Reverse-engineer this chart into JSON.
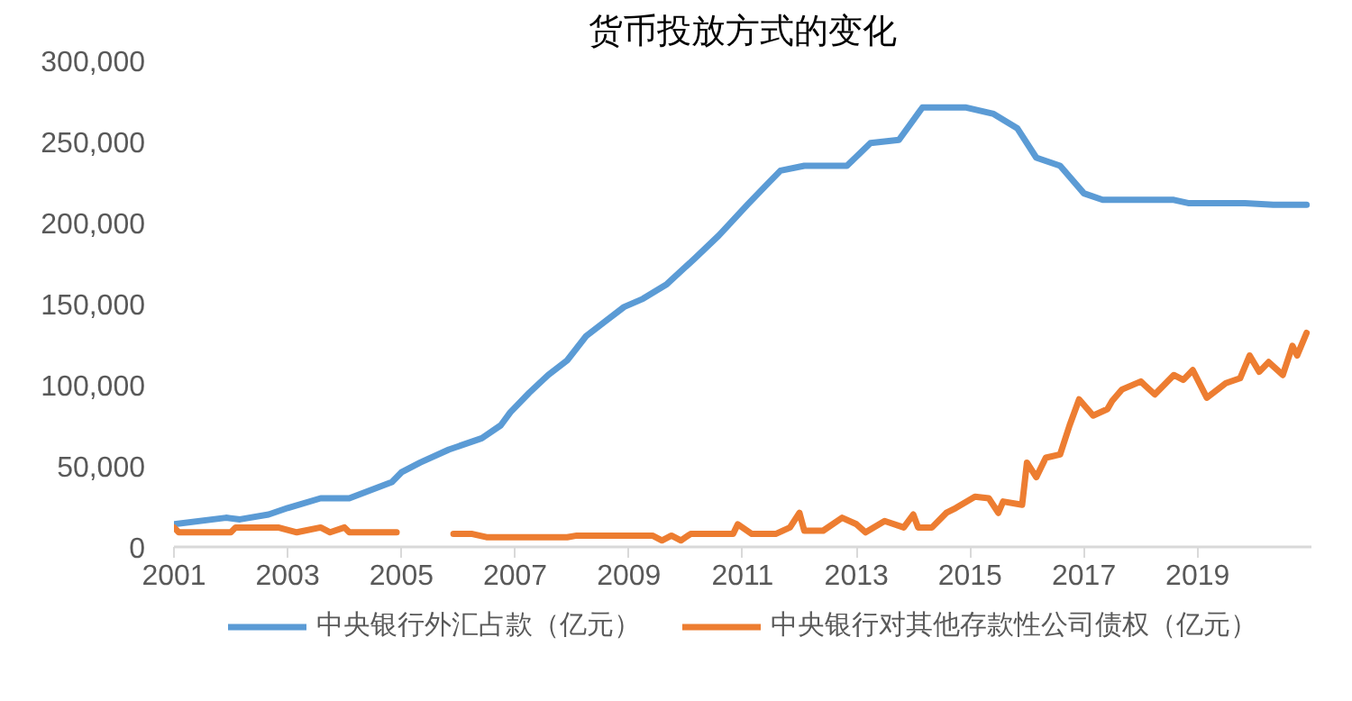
{
  "chart_data": {
    "type": "line",
    "title": "货币投放方式的变化",
    "xlim": [
      "2001-01",
      "2021-01"
    ],
    "xticks": [
      "2001",
      "2003",
      "2005",
      "2007",
      "2009",
      "2011",
      "2013",
      "2015",
      "2017",
      "2019"
    ],
    "ylim": [
      0,
      300000
    ],
    "yticks": [
      0,
      {
        "value": 50000,
        "label": "50,000"
      },
      {
        "value": 100000,
        "label": "100,000"
      },
      {
        "value": 150000,
        "label": "150,000"
      },
      {
        "value": 200000,
        "label": "200,000"
      },
      {
        "value": 250000,
        "label": "250,000"
      },
      {
        "value": 300000,
        "label": "300,000"
      }
    ],
    "grid": false,
    "legend": "bottom",
    "marker": "none",
    "line_style": "solid",
    "series": [
      {
        "name": "中央银行外汇占款（亿元）",
        "color": "#5b9bd5",
        "x": [
          "2001-01",
          "2001-12",
          "2002-03",
          "2002-09",
          "2003-01",
          "2003-08",
          "2004-02",
          "2004-11",
          "2005-01",
          "2005-05",
          "2005-11",
          "2006-06",
          "2006-10",
          "2006-12",
          "2007-04",
          "2007-08",
          "2007-12",
          "2008-04",
          "2008-08",
          "2008-12",
          "2009-04",
          "2009-09",
          "2010-03",
          "2010-08",
          "2011-02",
          "2011-06",
          "2011-09",
          "2012-02",
          "2012-11",
          "2013-04",
          "2013-10",
          "2014-03",
          "2014-12",
          "2015-06",
          "2015-11",
          "2016-03",
          "2016-08",
          "2017-01",
          "2017-05",
          "2018-08",
          "2018-11",
          "2019-11",
          "2020-05",
          "2020-12"
        ],
        "values": [
          14000,
          18000,
          17000,
          20000,
          24000,
          30000,
          30000,
          40000,
          46000,
          52000,
          60000,
          67000,
          75000,
          83000,
          95000,
          106000,
          115000,
          130000,
          139000,
          148000,
          153000,
          162000,
          178000,
          192000,
          211000,
          223000,
          232000,
          235000,
          235000,
          249000,
          251000,
          271000,
          271000,
          267000,
          258000,
          240000,
          235000,
          218000,
          214000,
          214000,
          212000,
          212000,
          211000,
          211000
        ]
      },
      {
        "name": "中央银行对其他存款性公司债权（亿元）",
        "color": "#ed7d31",
        "x": [
          "2001-01",
          "2001-02",
          "2002-01",
          "2002-02",
          "2002-11",
          "2003-03",
          "2003-08",
          "2003-10",
          "2004-01",
          "2004-02",
          "2004-12",
          "2005-06",
          "2005-12",
          "2006-04",
          "2006-07",
          "2007-12",
          "2008-02",
          "2009-06",
          "2009-08",
          "2009-10",
          "2009-12",
          "2010-01",
          "2010-02",
          "2010-11",
          "2010-12",
          "2011-03",
          "2011-08",
          "2011-11",
          "2012-01",
          "2012-02",
          "2012-06",
          "2012-10",
          "2013-01",
          "2013-03",
          "2013-07",
          "2013-11",
          "2014-01",
          "2014-02",
          "2014-05",
          "2014-08",
          "2014-10",
          "2015-02",
          "2015-05",
          "2015-07",
          "2015-08",
          "2015-12",
          "2016-01",
          "2016-03",
          "2016-05",
          "2016-08",
          "2016-10",
          "2016-12",
          "2017-03",
          "2017-06",
          "2017-07",
          "2017-09",
          "2018-01",
          "2018-04",
          "2018-08",
          "2018-10",
          "2018-12",
          "2019-03",
          "2019-07",
          "2019-10",
          "2019-12",
          "2020-02",
          "2020-04",
          "2020-07",
          "2020-09",
          "2020-10",
          "2020-12"
        ],
        "values": [
          12000,
          9000,
          9000,
          12000,
          12000,
          9000,
          12000,
          9000,
          12000,
          9000,
          9000,
          null,
          8000,
          8000,
          6000,
          6000,
          7000,
          7000,
          4000,
          7000,
          4000,
          6000,
          8000,
          8000,
          14000,
          8000,
          8000,
          12000,
          21000,
          10000,
          10000,
          18000,
          14000,
          9000,
          16000,
          12000,
          20000,
          12000,
          12000,
          21000,
          24000,
          31000,
          30000,
          21000,
          28000,
          26000,
          52000,
          43000,
          55000,
          57000,
          75000,
          91000,
          81000,
          85000,
          90000,
          97000,
          102000,
          94000,
          106000,
          103000,
          109000,
          92000,
          101000,
          104000,
          118000,
          108000,
          114000,
          106000,
          124000,
          118000,
          132000
        ]
      }
    ]
  }
}
